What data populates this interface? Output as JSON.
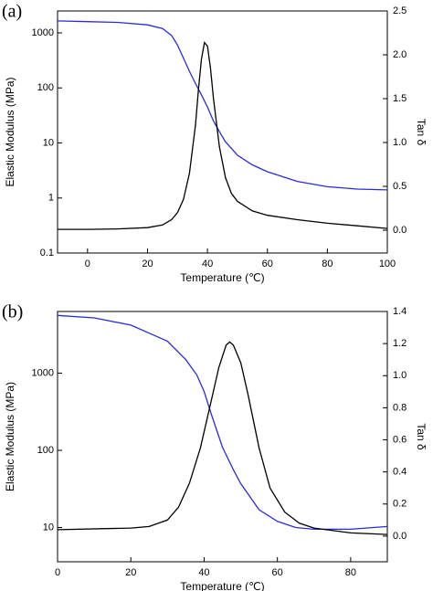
{
  "chart_data": [
    {
      "type": "line",
      "panel_label": "(a)",
      "xlabel": "Temperature (℃)",
      "ylabel": "Elastic Modulus (MPa)",
      "y2label": "Tan δ",
      "xlim": [
        -10,
        100
      ],
      "xticks": [
        0,
        20,
        40,
        60,
        80,
        100
      ],
      "ylim": [
        0.1,
        2500
      ],
      "ylog": true,
      "yticks": [
        0.1,
        1,
        10,
        100,
        1000
      ],
      "y2lim": [
        -0.26,
        2.5
      ],
      "y2ticks": [
        {
          "value": 0,
          "label": "0.0"
        },
        0.5,
        {
          "value": 1,
          "label": "1.0"
        },
        1.5,
        {
          "value": 2,
          "label": "2.0"
        },
        2.5
      ],
      "series": [
        {
          "color": "#2b2bdc",
          "axis": "y",
          "x": [
            -10,
            0,
            10,
            20,
            25,
            28,
            30,
            32,
            34,
            36,
            38,
            40,
            42,
            44,
            46,
            50,
            55,
            60,
            70,
            80,
            90,
            100
          ],
          "values": [
            1650,
            1600,
            1550,
            1400,
            1200,
            900,
            600,
            350,
            200,
            120,
            75,
            45,
            25,
            16,
            10.5,
            6,
            4,
            3,
            2,
            1.6,
            1.45,
            1.4
          ]
        },
        {
          "color": "#000000",
          "axis": "y2",
          "x": [
            -10,
            0,
            10,
            20,
            25,
            28,
            30,
            32,
            34,
            36,
            37,
            38,
            39,
            40,
            41,
            42,
            44,
            46,
            48,
            50,
            55,
            60,
            70,
            80,
            90,
            100
          ],
          "values": [
            0.01,
            0.01,
            0.015,
            0.03,
            0.06,
            0.12,
            0.2,
            0.35,
            0.65,
            1.2,
            1.6,
            1.95,
            2.14,
            2.1,
            1.85,
            1.5,
            0.95,
            0.6,
            0.42,
            0.33,
            0.22,
            0.17,
            0.12,
            0.08,
            0.05,
            0.02
          ]
        }
      ]
    },
    {
      "type": "line",
      "panel_label": "(b)",
      "xlabel": "Temperature (℃)",
      "ylabel": "Elastic Modulus (MPa)",
      "y2label": "Tan δ",
      "xlim": [
        0,
        90
      ],
      "xticks": [
        0,
        20,
        40,
        60,
        80
      ],
      "ylim": [
        3.6,
        6300
      ],
      "ylog": true,
      "yticks": [
        10,
        100,
        1000
      ],
      "y2lim": [
        -0.16,
        1.4
      ],
      "y2ticks": [
        {
          "value": 0,
          "label": "0.0"
        },
        0.2,
        0.4,
        0.6,
        0.8,
        {
          "value": 1,
          "label": "1.0"
        },
        1.2,
        1.4
      ],
      "series": [
        {
          "color": "#2b2bdc",
          "axis": "y",
          "x": [
            0,
            10,
            20,
            25,
            30,
            35,
            38,
            40,
            42,
            45,
            48,
            50,
            55,
            60,
            65,
            70,
            80,
            90
          ],
          "values": [
            5600,
            5200,
            4200,
            3300,
            2600,
            1500,
            950,
            580,
            290,
            110,
            56,
            37,
            17,
            12,
            10,
            9.5,
            9.5,
            10.3
          ]
        },
        {
          "color": "#000000",
          "axis": "y2",
          "x": [
            0,
            20,
            25,
            30,
            33,
            36,
            39,
            42,
            44,
            46,
            47,
            48,
            50,
            52,
            55,
            58,
            62,
            66,
            70,
            80,
            90
          ],
          "values": [
            0.04,
            0.05,
            0.06,
            0.1,
            0.18,
            0.33,
            0.55,
            0.85,
            1.05,
            1.19,
            1.21,
            1.19,
            1.08,
            0.88,
            0.55,
            0.3,
            0.15,
            0.08,
            0.05,
            0.02,
            0.01
          ]
        }
      ]
    }
  ]
}
